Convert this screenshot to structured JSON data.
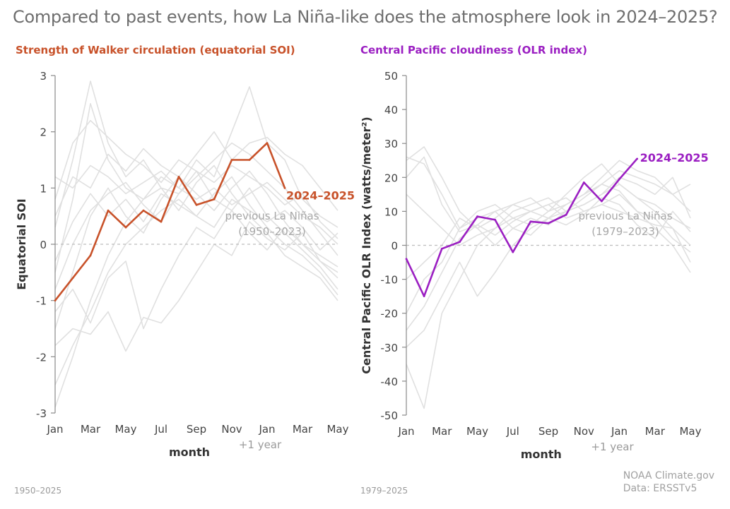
{
  "title": "Compared to past events, how La Niña-like does the atmosphere look in 2024–2025?",
  "footer": {
    "left_range": "1950–2025",
    "right_range": "1979–2025",
    "credit_line1": "NOAA Climate.gov",
    "credit_line2": "Data: ERSSTv5"
  },
  "colors": {
    "soi": "#c8522a",
    "olr": "#9b1fc2",
    "past": "#e0e0e0",
    "zero": "#bdbdbd"
  },
  "chart_data": [
    {
      "type": "line",
      "title": "Strength of Walker circulation (equatorial SOI)",
      "xlabel": "month",
      "ylabel": "Equatorial SOI",
      "ylim": [
        -3,
        3
      ],
      "yticks": [
        3,
        2,
        1,
        0,
        -1,
        -2,
        -3
      ],
      "xticks": [
        "Jan",
        "Mar",
        "May",
        "Jul",
        "Sep",
        "Nov",
        "Jan",
        "Mar",
        "May"
      ],
      "next_year_label": "+1 year",
      "x_range": [
        1,
        17
      ],
      "series": [
        {
          "name": "2024–2025",
          "x": [
            1,
            2,
            3,
            4,
            5,
            6,
            7,
            8,
            9,
            10,
            11,
            12,
            13,
            14
          ],
          "values": [
            -1.0,
            -0.6,
            -0.2,
            0.6,
            0.3,
            0.6,
            0.4,
            1.2,
            0.7,
            0.8,
            1.5,
            1.5,
            1.8,
            1.0
          ]
        }
      ],
      "background_label": "previous La Niñas",
      "background_range": "(1950–2023)",
      "background_series": [
        [
          -0.5,
          0.8,
          2.5,
          1.5,
          1.0,
          0.8,
          1.2,
          1.0,
          1.5,
          1.2,
          2.0,
          2.8,
          1.8,
          1.5,
          0.8,
          0.5,
          0.3
        ],
        [
          0.3,
          1.5,
          2.9,
          1.8,
          1.2,
          1.5,
          1.0,
          0.9,
          1.2,
          1.5,
          1.8,
          1.6,
          1.3,
          1.0,
          0.6,
          0.2,
          -0.2
        ],
        [
          -1.5,
          -0.5,
          0.5,
          1.0,
          0.5,
          0.2,
          0.8,
          1.2,
          0.9,
          0.6,
          1.0,
          1.3,
          0.9,
          0.4,
          0.0,
          -0.3,
          -0.5
        ],
        [
          -2.5,
          -1.8,
          -1.2,
          -0.5,
          0.0,
          0.3,
          0.6,
          0.8,
          0.5,
          0.9,
          1.2,
          0.7,
          0.3,
          0.0,
          -0.2,
          -0.5,
          -0.9
        ],
        [
          -2.9,
          -2.0,
          -1.0,
          -0.2,
          0.4,
          0.8,
          1.0,
          0.6,
          1.1,
          1.4,
          0.9,
          0.5,
          0.2,
          -0.2,
          -0.4,
          -0.6,
          -1.0
        ],
        [
          -1.8,
          -1.5,
          -1.6,
          -1.2,
          -1.9,
          -1.3,
          -1.4,
          -1.0,
          -0.5,
          0.0,
          -0.2,
          0.4,
          0.1,
          -0.1,
          0.2,
          -0.3,
          -0.6
        ],
        [
          0.8,
          1.8,
          2.2,
          1.9,
          1.6,
          1.4,
          1.1,
          1.5,
          1.3,
          1.1,
          1.4,
          1.2,
          1.0,
          0.7,
          0.9,
          0.4,
          0.1
        ],
        [
          1.2,
          1.0,
          1.4,
          1.2,
          0.9,
          1.1,
          1.3,
          1.0,
          0.8,
          1.0,
          0.7,
          0.9,
          1.1,
          0.8,
          0.5,
          0.3,
          0.0
        ],
        [
          -0.8,
          0.0,
          0.6,
          0.9,
          1.1,
          0.7,
          0.4,
          0.9,
          1.3,
          0.8,
          0.6,
          1.0,
          0.5,
          0.2,
          -0.1,
          -0.4,
          -0.8
        ],
        [
          -1.2,
          -0.8,
          -1.4,
          -0.6,
          -0.3,
          -1.5,
          -0.8,
          -0.2,
          0.3,
          0.1,
          0.6,
          0.2,
          -0.1,
          0.3,
          0.0,
          -0.2,
          -0.4
        ],
        [
          0.5,
          1.2,
          1.0,
          1.6,
          1.3,
          1.7,
          1.4,
          1.2,
          1.6,
          2.0,
          1.5,
          1.8,
          1.9,
          1.6,
          1.4,
          1.0,
          0.6
        ],
        [
          -0.3,
          0.4,
          0.9,
          0.5,
          0.8,
          0.4,
          0.9,
          0.7,
          0.5,
          0.3,
          0.8,
          0.6,
          0.4,
          0.6,
          0.3,
          -0.1,
          0.2
        ]
      ]
    },
    {
      "type": "line",
      "title": "Central Pacific cloudiness (OLR index)",
      "xlabel": "month",
      "ylabel": "Central Pacific OLR Index (watts/meter²)",
      "ylim": [
        -50,
        50
      ],
      "yticks": [
        50,
        40,
        30,
        20,
        10,
        0,
        -10,
        -20,
        -30,
        -40,
        -50
      ],
      "xticks": [
        "Jan",
        "Mar",
        "May",
        "Jul",
        "Sep",
        "Nov",
        "Jan",
        "Mar",
        "May"
      ],
      "next_year_label": "+1 year",
      "x_range": [
        1,
        17
      ],
      "series": [
        {
          "name": "2024–2025",
          "x": [
            1,
            2,
            3,
            4,
            5,
            6,
            7,
            8,
            9,
            10,
            11,
            12,
            13,
            14
          ],
          "values": [
            -4,
            -15,
            -1,
            1,
            8.5,
            7.5,
            -2,
            7,
            6.5,
            9,
            18.5,
            13,
            19.5,
            25.5
          ]
        }
      ],
      "background_label": "previous La Niñas",
      "background_range": "(1979–2023)",
      "background_series": [
        [
          25,
          29,
          20,
          10,
          5,
          8,
          12,
          10,
          8,
          12,
          15,
          18,
          22,
          20,
          18,
          15,
          10
        ],
        [
          26,
          24,
          15,
          5,
          8,
          10,
          12,
          14,
          10,
          15,
          20,
          24,
          18,
          14,
          12,
          8,
          5
        ],
        [
          -35,
          -48,
          -20,
          -10,
          0,
          5,
          8,
          6,
          10,
          12,
          15,
          20,
          25,
          22,
          20,
          15,
          18
        ],
        [
          -30,
          -25,
          -15,
          -5,
          -15,
          -8,
          0,
          5,
          8,
          10,
          12,
          15,
          18,
          14,
          10,
          5,
          -5
        ],
        [
          -20,
          -10,
          -5,
          5,
          10,
          12,
          8,
          10,
          12,
          8,
          10,
          12,
          15,
          10,
          5,
          0,
          -8
        ],
        [
          15,
          10,
          5,
          0,
          3,
          5,
          10,
          12,
          14,
          10,
          12,
          15,
          20,
          18,
          15,
          20,
          8
        ],
        [
          -10,
          -5,
          0,
          8,
          5,
          0,
          5,
          8,
          6,
          10,
          14,
          18,
          16,
          10,
          8,
          2,
          -2
        ],
        [
          20,
          26,
          12,
          4,
          6,
          3,
          7,
          10,
          12,
          14,
          10,
          12,
          10,
          8,
          6,
          5,
          0
        ],
        [
          -25,
          -18,
          -8,
          2,
          6,
          10,
          5,
          3,
          8,
          6,
          9,
          14,
          12,
          6,
          2,
          10,
          4
        ]
      ]
    }
  ]
}
